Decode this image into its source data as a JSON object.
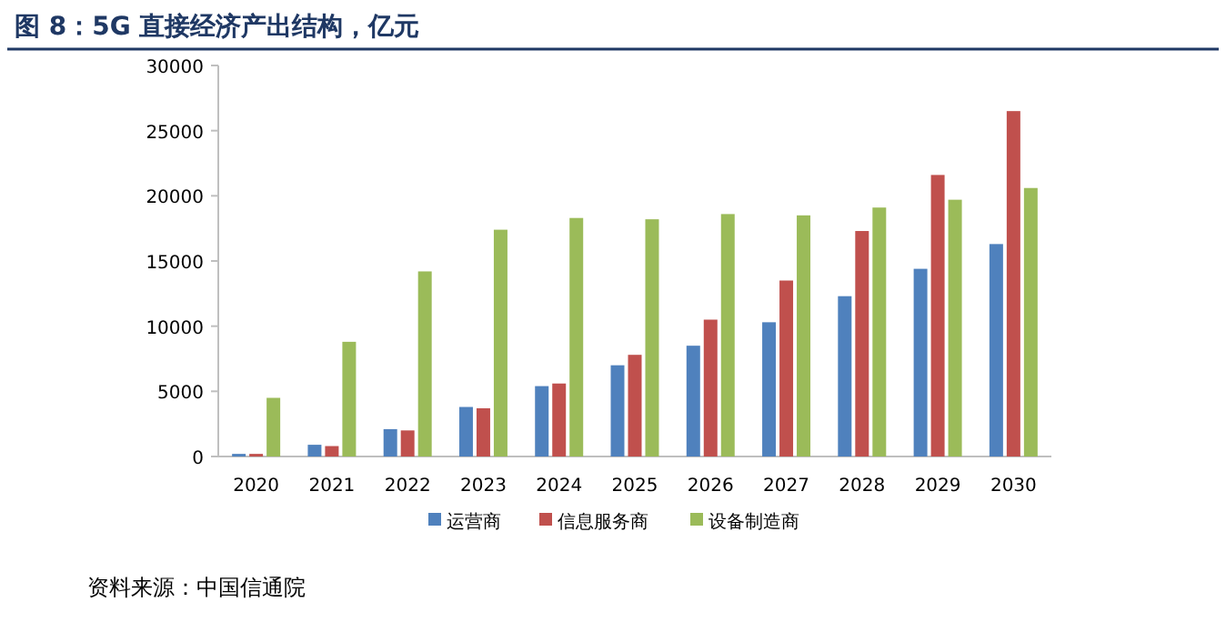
{
  "chart_data": {
    "type": "bar",
    "title": "图 8：5G 直接经济产出结构，亿元",
    "categories": [
      "2020",
      "2021",
      "2022",
      "2023",
      "2024",
      "2025",
      "2026",
      "2027",
      "2028",
      "2029",
      "2030"
    ],
    "series": [
      {
        "name": "运营商",
        "color": "#4f81bd",
        "values": [
          200,
          900,
          2100,
          3800,
          5400,
          7000,
          8500,
          10300,
          12300,
          14400,
          16300
        ]
      },
      {
        "name": "信息服务商",
        "color": "#c0504d",
        "values": [
          200,
          800,
          2000,
          3700,
          5600,
          7800,
          10500,
          13500,
          17300,
          21600,
          26500
        ]
      },
      {
        "name": "设备制造商",
        "color": "#9bbb59",
        "values": [
          4500,
          8800,
          14200,
          17400,
          18300,
          18200,
          18600,
          18500,
          19100,
          19700,
          20600
        ]
      }
    ],
    "ylim": [
      0,
      30000
    ],
    "yticks": [
      0,
      5000,
      10000,
      15000,
      20000,
      25000,
      30000
    ],
    "grid": false,
    "legend": "bottom",
    "annotations": [
      "资料来源：中国信通院"
    ]
  }
}
